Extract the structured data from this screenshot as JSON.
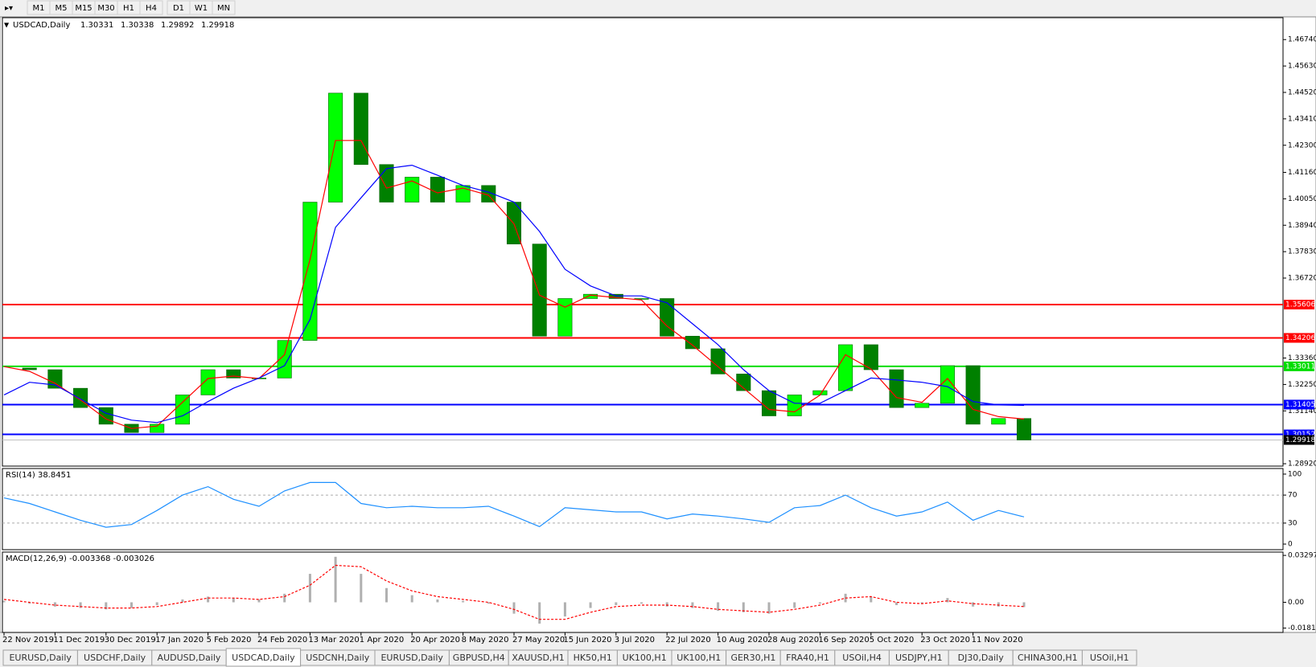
{
  "toolbar": {
    "timeframes": [
      "M1",
      "M5",
      "M15",
      "M30",
      "H1",
      "H4",
      "D1",
      "W1",
      "MN"
    ]
  },
  "chart_data": [
    {
      "type": "candlestick",
      "symbol": "USDCAD,Daily",
      "ohlc": [
        1.30331,
        1.30338,
        1.29892,
        1.29918
      ],
      "categories": [
        "22 Nov 2019",
        null,
        "11 Dec 2019",
        null,
        "30 Dec 2019",
        null,
        "17 Jan 2020",
        null,
        "5 Feb 2020",
        null,
        "24 Feb 2020",
        null,
        "13 Mar 2020",
        null,
        "1 Apr 2020",
        null,
        "20 Apr 2020",
        null,
        "8 May 2020",
        null,
        "27 May 2020",
        null,
        "15 Jun 2020",
        null,
        "3 Jul 2020",
        null,
        "22 Jul 2020",
        null,
        "10 Aug 2020",
        null,
        "28 Aug 2020",
        null,
        "16 Sep 2020",
        null,
        "5 Oct 2020",
        null,
        "23 Oct 2020",
        null,
        "11 Nov 2020",
        null,
        null
      ],
      "close": [
        1.3294,
        1.3287,
        1.3209,
        1.3128,
        1.3058,
        1.3023,
        1.3058,
        1.3181,
        1.3287,
        1.3252,
        1.3252,
        1.341,
        1.3991,
        1.4449,
        1.4149,
        1.3991,
        1.4096,
        1.3991,
        1.4061,
        1.3991,
        1.3815,
        1.3428,
        1.3586,
        1.3604,
        1.3586,
        1.3586,
        1.3428,
        1.3375,
        1.3269,
        1.3199,
        1.3093,
        1.3181,
        1.3199,
        1.3392,
        1.3287,
        1.3128,
        1.3146,
        1.3304,
        1.3058,
        1.3082,
        1.29918
      ],
      "up_color": "#00ff00",
      "down_color": "#008000",
      "series": [
        {
          "color": "#ff0000",
          "values": [
            1.33,
            1.328,
            1.323,
            1.316,
            1.308,
            1.304,
            1.305,
            1.315,
            1.325,
            1.326,
            1.325,
            1.335,
            1.375,
            1.425,
            1.425,
            1.405,
            1.408,
            1.403,
            1.405,
            1.402,
            1.39,
            1.36,
            1.355,
            1.36,
            1.359,
            1.358,
            1.347,
            1.339,
            1.33,
            1.321,
            1.312,
            1.311,
            1.318,
            1.335,
            1.329,
            1.317,
            1.315,
            1.325,
            1.312,
            1.309,
            1.308
          ]
        },
        {
          "color": "#0000ff",
          "values": [
            1.3181,
            1.3234,
            1.3223,
            1.3164,
            1.3104,
            1.3075,
            1.3065,
            1.3093,
            1.3153,
            1.3209,
            1.3252,
            1.3304,
            1.3498,
            1.3885,
            1.4009,
            1.4132,
            1.4146,
            1.4104,
            1.4061,
            1.4033,
            1.3991,
            1.3868,
            1.3709,
            1.3639,
            1.3597,
            1.3597,
            1.3568,
            1.348,
            1.3392,
            1.3287,
            1.3199,
            1.3146,
            1.3146,
            1.3199,
            1.3252,
            1.3244,
            1.3234,
            1.3216,
            1.3153,
            1.3139,
            1.3137
          ]
        }
      ],
      "levels": [
        {
          "value": 1.35606,
          "color": "#ff0000"
        },
        {
          "value": 1.34206,
          "color": "#ff0000"
        },
        {
          "value": 1.33011,
          "color": "#00dd00"
        },
        {
          "value": 1.31405,
          "color": "#0000ff"
        },
        {
          "value": 1.30152,
          "color": "#0000ff"
        }
      ],
      "ylim": [
        1.2882,
        1.4766
      ],
      "yticks": [
        {
          "value": 1.4674,
          "label": "1.46740"
        },
        {
          "value": 1.4563,
          "label": "1.45630"
        },
        {
          "value": 1.4452,
          "label": "1.44520"
        },
        {
          "value": 1.4341,
          "label": "1.43410"
        },
        {
          "value": 1.423,
          "label": "1.42300"
        },
        {
          "value": 1.4116,
          "label": "1.41160"
        },
        {
          "value": 1.4005,
          "label": "1.40050"
        },
        {
          "value": 1.3894,
          "label": "1.38940"
        },
        {
          "value": 1.3783,
          "label": "1.37830"
        },
        {
          "value": 1.3672,
          "label": "1.36720"
        },
        {
          "value": 1.3336,
          "label": "1.33360"
        },
        {
          "value": 1.3225,
          "label": "1.32250"
        },
        {
          "value": 1.3114,
          "label": "1.31140"
        },
        {
          "value": 1.2892,
          "label": "1.28920"
        }
      ]
    },
    {
      "type": "line",
      "title": "RSI(14) 38.8451",
      "color": "#1e90ff",
      "values": [
        66,
        58,
        46,
        34,
        24,
        28,
        48,
        70,
        82,
        64,
        54,
        76,
        88,
        88,
        58,
        52,
        54,
        52,
        52,
        54,
        40,
        25,
        52,
        49,
        46,
        46,
        36,
        43,
        40,
        36,
        31,
        52,
        55,
        70,
        52,
        40,
        46,
        60,
        34,
        48,
        38.8451
      ],
      "ylim": [
        -8,
        108
      ],
      "yticks": [
        0,
        30,
        70,
        100
      ]
    },
    {
      "type": "macd",
      "title": "MACD(12,26,9) -0.003368 -0.003026",
      "series": [
        {
          "color": "#b0b0b0",
          "values": [
            0.001,
            -0.001,
            -0.003,
            -0.004,
            -0.005,
            -0.004,
            -0.002,
            0.002,
            0.004,
            0.003,
            0.002,
            0.006,
            0.02,
            0.032,
            0.02,
            0.01,
            0.005,
            0.002,
            0.001,
            -0.001,
            -0.008,
            -0.015,
            -0.01,
            -0.004,
            -0.002,
            -0.001,
            -0.003,
            -0.004,
            -0.006,
            -0.007,
            -0.008,
            -0.004,
            -0.001,
            0.006,
            0.004,
            -0.002,
            -0.001,
            0.003,
            -0.003,
            -0.003,
            -0.003368
          ]
        },
        {
          "color": "#ff0000",
          "values": [
            0.002,
            0.0,
            -0.002,
            -0.003,
            -0.004,
            -0.004,
            -0.003,
            0.0,
            0.003,
            0.003,
            0.002,
            0.004,
            0.012,
            0.026,
            0.025,
            0.015,
            0.008,
            0.004,
            0.002,
            0.0,
            -0.005,
            -0.012,
            -0.012,
            -0.007,
            -0.003,
            -0.002,
            -0.002,
            -0.003,
            -0.005,
            -0.006,
            -0.007,
            -0.005,
            -0.002,
            0.003,
            0.004,
            0.0,
            -0.001,
            0.001,
            -0.001,
            -0.002,
            -0.003026
          ]
        }
      ],
      "ylim": [
        -0.0212,
        0.0353
      ],
      "yticks": [
        0.032972,
        {
          "value": 0,
          "label": "0.00"
        },
        -0.01815
      ]
    }
  ],
  "tabs": {
    "items": [
      "EURUSD,Daily",
      "USDCHF,Daily",
      "AUDUSD,Daily",
      "USDCAD,Daily",
      "USDCNH,Daily",
      "EURUSD,Daily",
      "GBPUSD,H4",
      "XAUUSD,H1",
      "HK50,H1",
      "UK100,H1",
      "UK100,H1",
      "GER30,H1",
      "FRA40,H1",
      "USOil,H4",
      "USDJPY,H1",
      "DJ30,Daily",
      "CHINA300,H1",
      "USOil,H1"
    ],
    "active": "USDCAD,Daily"
  }
}
